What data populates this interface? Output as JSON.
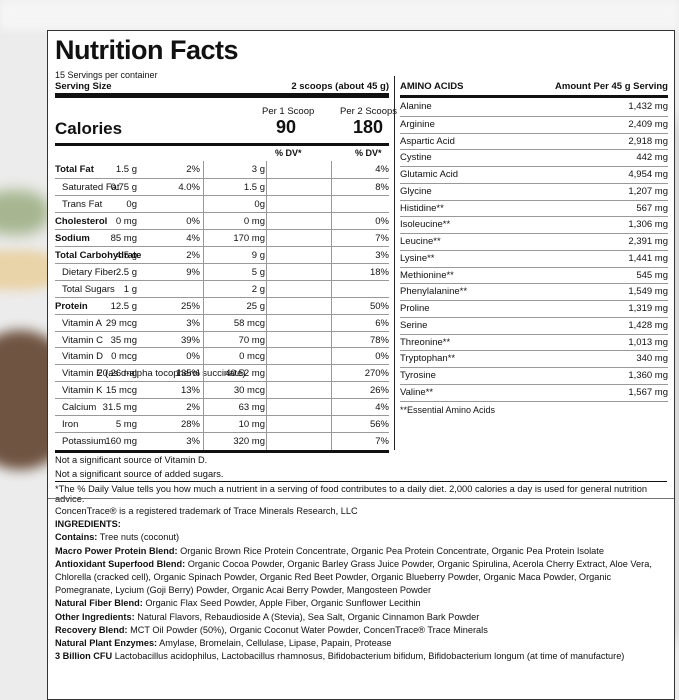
{
  "title": "Nutrition Facts",
  "servings_per_container": "15 Servings per container",
  "serving_size_label": "Serving Size",
  "serving_size_value": "2 scoops (about 45 g)",
  "per1_label": "Per 1 Scoop",
  "per2_label": "Per 2 Scoops",
  "calories_label": "Calories",
  "calories_1": "90",
  "calories_2": "180",
  "dv_label_1": "% DV*",
  "dv_label_2": "% DV*",
  "nutrients": [
    {
      "name": "Total Fat",
      "bold": true,
      "indent": false,
      "a1": "1.5 g",
      "d1": "2%",
      "a2": "3 g",
      "d2": "4%"
    },
    {
      "name": "Saturated Fat",
      "bold": false,
      "indent": true,
      "a1": "0.75 g",
      "d1": "4.0%",
      "a2": "1.5 g",
      "d2": "8%"
    },
    {
      "name": "Trans Fat",
      "bold": false,
      "indent": true,
      "a1": "0g",
      "d1": "",
      "a2": "0g",
      "d2": ""
    },
    {
      "name": "Cholesterol",
      "bold": true,
      "indent": false,
      "a1": "0 mg",
      "d1": "0%",
      "a2": "0 mg",
      "d2": "0%"
    },
    {
      "name": "Sodium",
      "bold": true,
      "indent": false,
      "a1": "85 mg",
      "d1": "4%",
      "a2": "170 mg",
      "d2": "7%"
    },
    {
      "name": "Total Carbohydrate",
      "bold": true,
      "indent": false,
      "a1": "4.5 g",
      "d1": "2%",
      "a2": "9 g",
      "d2": "3%"
    },
    {
      "name": "Dietary Fiber",
      "bold": false,
      "indent": true,
      "a1": "2.5 g",
      "d1": "9%",
      "a2": "5 g",
      "d2": "18%"
    },
    {
      "name": "Total Sugars",
      "bold": false,
      "indent": true,
      "a1": "1 g",
      "d1": "",
      "a2": "2 g",
      "d2": ""
    },
    {
      "name": "Protein",
      "bold": true,
      "indent": false,
      "a1": "12.5 g",
      "d1": "25%",
      "a2": "25 g",
      "d2": "50%"
    },
    {
      "name": "Vitamin A",
      "bold": false,
      "indent": true,
      "a1": "29 mcg",
      "d1": "3%",
      "a2": "58 mcg",
      "d2": "6%"
    },
    {
      "name": "Vitamin C",
      "bold": false,
      "indent": true,
      "a1": "35 mg",
      "d1": "39%",
      "a2": "70 mg",
      "d2": "78%"
    },
    {
      "name": "Vitamin D",
      "bold": false,
      "indent": true,
      "a1": "0 mcg",
      "d1": "0%",
      "a2": "0 mcg",
      "d2": "0%"
    },
    {
      "name": "Vitamin E (as d-alpha tocopherol succinate)",
      "bold": false,
      "indent": true,
      "a1": "20.26 mg",
      "d1": "135%",
      "a2": "40.52 mg",
      "d2": "270%"
    },
    {
      "name": "Vitamin K",
      "bold": false,
      "indent": true,
      "a1": "15 mcg",
      "d1": "13%",
      "a2": "30 mcg",
      "d2": "26%"
    },
    {
      "name": "Calcium",
      "bold": false,
      "indent": true,
      "a1": "31.5 mg",
      "d1": "2%",
      "a2": "63 mg",
      "d2": "4%"
    },
    {
      "name": "Iron",
      "bold": false,
      "indent": true,
      "a1": "5 mg",
      "d1": "28%",
      "a2": "10 mg",
      "d2": "56%"
    },
    {
      "name": "Potassium",
      "bold": false,
      "indent": true,
      "a1": "160 mg",
      "d1": "3%",
      "a2": "320 mg",
      "d2": "7%"
    }
  ],
  "note_vitd": "Not a significant source of Vitamin D.",
  "note_sugars": "Not a significant source of added sugars.",
  "note_dv": "*The % Daily Value tells you how much a nutrient in a serving of food contributes to a daily diet. 2,000 calories a day is used for general nutrition advice.",
  "amino": {
    "header_label": "AMINO ACIDS",
    "header_amount": "Amount Per 45 g Serving",
    "items": [
      {
        "n": "Alanine",
        "v": "1,432 mg"
      },
      {
        "n": "Arginine",
        "v": "2,409 mg"
      },
      {
        "n": "Aspartic Acid",
        "v": "2,918 mg"
      },
      {
        "n": "Cystine",
        "v": "442 mg"
      },
      {
        "n": "Glutamic Acid",
        "v": "4,954 mg"
      },
      {
        "n": "Glycine",
        "v": "1,207 mg"
      },
      {
        "n": "Histidine**",
        "v": "567 mg"
      },
      {
        "n": "Isoleucine**",
        "v": "1,306 mg"
      },
      {
        "n": "Leucine**",
        "v": "2,391 mg"
      },
      {
        "n": "Lysine**",
        "v": "1,441 mg"
      },
      {
        "n": "Methionine**",
        "v": "545 mg"
      },
      {
        "n": "Phenylalanine**",
        "v": "1,549 mg"
      },
      {
        "n": "Proline",
        "v": "1,319 mg"
      },
      {
        "n": "Serine",
        "v": "1,428 mg"
      },
      {
        "n": "Threonine**",
        "v": "1,013 mg"
      },
      {
        "n": "Tryptophan**",
        "v": "340 mg"
      },
      {
        "n": "Tyrosine",
        "v": "1,360 mg"
      },
      {
        "n": "Valine**",
        "v": "1,567 mg"
      }
    ],
    "footnote": "**Essential Amino Acids"
  },
  "ingredients": {
    "trademark": "ConcenTrace® is a registered trademark of Trace Minerals Research, LLC",
    "heading": "INGREDIENTS:",
    "lines": [
      {
        "label": "Contains:",
        "text": " Tree nuts (coconut)"
      },
      {
        "label": "Macro Power Protein Blend:",
        "text": " Organic Brown Rice Protein Concentrate, Organic Pea Protein Concentrate, Organic Pea Protein Isolate"
      },
      {
        "label": "Antioxidant Superfood Blend:",
        "text": " Organic Cocoa Powder, Organic Barley Grass Juice Powder, Organic Spirulina, Acerola Cherry Extract, Aloe Vera, Chlorella (cracked cell), Organic Spinach Powder, Organic Red Beet Powder, Organic Blueberry Powder, Organic Maca Powder, Organic Pomegranate, Lycium (Goji Berry) Powder, Organic Acai Berry Powder, Mangosteen Powder"
      },
      {
        "label": "Natural Fiber Blend:",
        "text": " Organic Flax Seed Powder, Apple Fiber, Organic Sunflower Lecithin"
      },
      {
        "label": "Other Ingredients:",
        "text": " Natural Flavors, Rebaudioside A (Stevia), Sea Salt, Organic Cinnamon Bark Powder"
      },
      {
        "label": "Recovery Blend:",
        "text": " MCT Oil Powder (50%), Organic Coconut Water Powder, ConcenTrace® Trace Minerals"
      },
      {
        "label": "Natural Plant Enzymes:",
        "text": " Amylase, Bromelain, Cellulase, Lipase, Papain, Protease"
      },
      {
        "label": "3 Billion CFU",
        "text": " Lactobacillus acidophilus, Lactobacillus rhamnosus, Bifidobacterium bifidum, Bifidobacterium longum (at time of manufacture)"
      }
    ]
  }
}
